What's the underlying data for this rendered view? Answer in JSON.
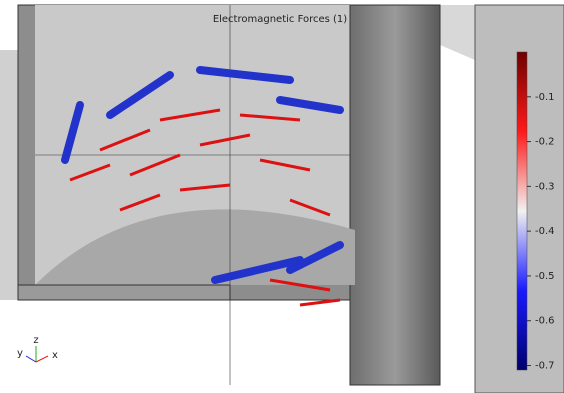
{
  "chart_data": {
    "type": "arrow-field",
    "title": "Electromagnetic Forces (1)",
    "colorbar": {
      "lim": [
        -0.71,
        0
      ],
      "ticks": [
        -0.1,
        -0.2,
        -0.3,
        -0.4,
        -0.5,
        -0.6,
        -0.7
      ],
      "colors": [
        "#700000",
        "#ff1a1a",
        "#f2f2f2",
        "#1a1aff",
        "#00006e"
      ]
    },
    "axes": {
      "x": "x",
      "y": "y",
      "z": "z"
    }
  }
}
